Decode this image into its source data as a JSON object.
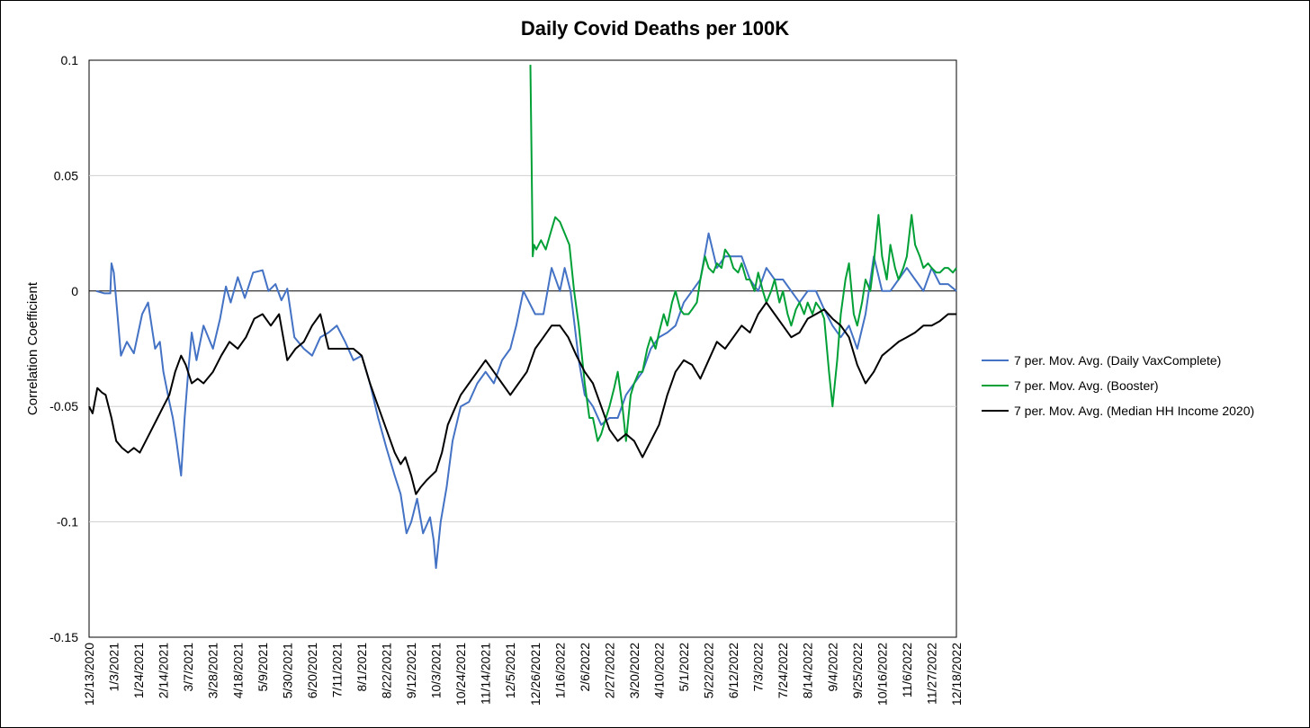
{
  "chart_data": {
    "type": "line",
    "title": "Daily Covid Deaths per 100K",
    "xlabel": "",
    "ylabel": "Correlation Coefficient",
    "ylim": [
      -0.15,
      0.1
    ],
    "yticks": [
      0.1,
      0.05,
      0,
      -0.05,
      -0.1,
      -0.15
    ],
    "ytick_labels": [
      "0.1",
      "0.05",
      "0",
      "-0.05",
      "-0.1",
      "-0.15"
    ],
    "xlim": [
      "2020-12-13",
      "2022-12-18"
    ],
    "xtick_labels": [
      "12/13/2020",
      "1/3/2021",
      "1/24/2021",
      "2/14/2021",
      "3/7/2021",
      "3/28/2021",
      "4/18/2021",
      "5/9/2021",
      "5/30/2021",
      "6/20/2021",
      "7/11/2021",
      "8/1/2021",
      "8/22/2021",
      "9/12/2021",
      "10/3/2021",
      "10/24/2021",
      "11/14/2021",
      "12/5/2021",
      "12/26/2021",
      "1/16/2022",
      "2/6/2022",
      "2/27/2022",
      "3/20/2022",
      "4/10/2022",
      "5/1/2022",
      "5/22/2022",
      "6/12/2022",
      "7/3/2022",
      "7/24/2022",
      "8/14/2022",
      "9/4/2022",
      "9/25/2022",
      "10/16/2022",
      "11/6/2022",
      "11/27/2022",
      "12/18/2022"
    ],
    "grid": true,
    "legend_position": "right",
    "series": [
      {
        "name": "7 per. Mov. Avg. (Daily VaxComplete)",
        "color": "#4472C4",
        "x": [
          "2020-12-19",
          "2020-12-26",
          "2020-12-31",
          "2021-01-01",
          "2021-01-03",
          "2021-01-06",
          "2021-01-09",
          "2021-01-14",
          "2021-01-20",
          "2021-01-27",
          "2021-02-01",
          "2021-02-07",
          "2021-02-11",
          "2021-02-14",
          "2021-02-19",
          "2021-02-22",
          "2021-02-25",
          "2021-03-01",
          "2021-03-04",
          "2021-03-07",
          "2021-03-10",
          "2021-03-14",
          "2021-03-20",
          "2021-03-28",
          "2021-04-03",
          "2021-04-08",
          "2021-04-12",
          "2021-04-18",
          "2021-04-24",
          "2021-05-01",
          "2021-05-09",
          "2021-05-14",
          "2021-05-20",
          "2021-05-25",
          "2021-05-30",
          "2021-06-05",
          "2021-06-13",
          "2021-06-20",
          "2021-06-27",
          "2021-07-04",
          "2021-07-11",
          "2021-07-18",
          "2021-07-25",
          "2021-08-01",
          "2021-08-08",
          "2021-08-15",
          "2021-08-22",
          "2021-08-29",
          "2021-09-03",
          "2021-09-08",
          "2021-09-12",
          "2021-09-17",
          "2021-09-22",
          "2021-09-28",
          "2021-10-01",
          "2021-10-03",
          "2021-10-07",
          "2021-10-12",
          "2021-10-17",
          "2021-10-24",
          "2021-10-31",
          "2021-11-07",
          "2021-11-14",
          "2021-11-21",
          "2021-11-28",
          "2021-12-05",
          "2021-12-10",
          "2021-12-16",
          "2021-12-21",
          "2021-12-26",
          "2022-01-02",
          "2022-01-09",
          "2022-01-16",
          "2022-01-20",
          "2022-01-25",
          "2022-02-01",
          "2022-02-06",
          "2022-02-13",
          "2022-02-20",
          "2022-02-27",
          "2022-03-06",
          "2022-03-13",
          "2022-03-20",
          "2022-03-27",
          "2022-04-03",
          "2022-04-10",
          "2022-04-17",
          "2022-04-24",
          "2022-05-01",
          "2022-05-08",
          "2022-05-15",
          "2022-05-22",
          "2022-05-29",
          "2022-06-05",
          "2022-06-12",
          "2022-06-19",
          "2022-06-26",
          "2022-07-03",
          "2022-07-10",
          "2022-07-17",
          "2022-07-24",
          "2022-07-31",
          "2022-08-07",
          "2022-08-14",
          "2022-08-21",
          "2022-08-28",
          "2022-09-04",
          "2022-09-11",
          "2022-09-18",
          "2022-09-25",
          "2022-10-02",
          "2022-10-09",
          "2022-10-16",
          "2022-10-23",
          "2022-10-30",
          "2022-11-06",
          "2022-11-13",
          "2022-11-20",
          "2022-11-27",
          "2022-12-04",
          "2022-12-11",
          "2022-12-18"
        ],
        "y": [
          0,
          -0.001,
          -0.001,
          0.012,
          0.008,
          -0.01,
          -0.028,
          -0.022,
          -0.027,
          -0.01,
          -0.005,
          -0.025,
          -0.022,
          -0.035,
          -0.048,
          -0.055,
          -0.065,
          -0.08,
          -0.055,
          -0.035,
          -0.018,
          -0.03,
          -0.015,
          -0.025,
          -0.012,
          0.002,
          -0.005,
          0.006,
          -0.003,
          0.008,
          0.009,
          0.0,
          0.003,
          -0.004,
          0.001,
          -0.02,
          -0.025,
          -0.028,
          -0.02,
          -0.018,
          -0.015,
          -0.022,
          -0.03,
          -0.028,
          -0.04,
          -0.055,
          -0.068,
          -0.08,
          -0.088,
          -0.105,
          -0.1,
          -0.09,
          -0.105,
          -0.098,
          -0.108,
          -0.12,
          -0.1,
          -0.085,
          -0.065,
          -0.05,
          -0.048,
          -0.04,
          -0.035,
          -0.04,
          -0.03,
          -0.025,
          -0.015,
          0.0,
          -0.005,
          -0.01,
          -0.01,
          0.01,
          0.0,
          0.01,
          0.0,
          -0.03,
          -0.045,
          -0.05,
          -0.058,
          -0.055,
          -0.055,
          -0.045,
          -0.04,
          -0.035,
          -0.025,
          -0.02,
          -0.018,
          -0.015,
          -0.005,
          0.0,
          0.005,
          0.025,
          0.01,
          0.015,
          0.015,
          0.015,
          0.005,
          0.0,
          0.01,
          0.005,
          0.005,
          0.0,
          -0.005,
          0.0,
          0.0,
          -0.008,
          -0.015,
          -0.02,
          -0.015,
          -0.025,
          -0.01,
          0.015,
          0.0,
          0.0,
          0.005,
          0.01,
          0.005,
          0.0,
          0.01,
          0.003,
          0.003,
          0.0
        ]
      },
      {
        "name": "7 per. Mov. Avg. (Booster)",
        "color": "#00A036",
        "x": [
          "2021-12-22",
          "2021-12-23",
          "2021-12-24",
          "2021-12-25",
          "2021-12-27",
          "2021-12-31",
          "2022-01-04",
          "2022-01-08",
          "2022-01-12",
          "2022-01-16",
          "2022-01-20",
          "2022-01-24",
          "2022-01-28",
          "2022-02-01",
          "2022-02-06",
          "2022-02-10",
          "2022-02-13",
          "2022-02-17",
          "2022-02-20",
          "2022-02-24",
          "2022-02-27",
          "2022-03-03",
          "2022-03-06",
          "2022-03-10",
          "2022-03-13",
          "2022-03-17",
          "2022-03-20",
          "2022-03-24",
          "2022-03-27",
          "2022-03-31",
          "2022-04-03",
          "2022-04-07",
          "2022-04-10",
          "2022-04-14",
          "2022-04-17",
          "2022-04-21",
          "2022-04-24",
          "2022-04-28",
          "2022-05-01",
          "2022-05-05",
          "2022-05-08",
          "2022-05-12",
          "2022-05-15",
          "2022-05-19",
          "2022-05-22",
          "2022-05-26",
          "2022-05-29",
          "2022-06-02",
          "2022-06-05",
          "2022-06-09",
          "2022-06-12",
          "2022-06-16",
          "2022-06-19",
          "2022-06-23",
          "2022-06-26",
          "2022-06-30",
          "2022-07-03",
          "2022-07-07",
          "2022-07-10",
          "2022-07-14",
          "2022-07-17",
          "2022-07-21",
          "2022-07-24",
          "2022-07-28",
          "2022-07-31",
          "2022-08-04",
          "2022-08-07",
          "2022-08-11",
          "2022-08-14",
          "2022-08-18",
          "2022-08-21",
          "2022-08-25",
          "2022-08-28",
          "2022-09-01",
          "2022-09-04",
          "2022-09-06",
          "2022-09-08",
          "2022-09-11",
          "2022-09-15",
          "2022-09-18",
          "2022-09-22",
          "2022-09-25",
          "2022-09-29",
          "2022-10-02",
          "2022-10-06",
          "2022-10-09",
          "2022-10-13",
          "2022-10-16",
          "2022-10-20",
          "2022-10-23",
          "2022-10-27",
          "2022-10-30",
          "2022-11-03",
          "2022-11-06",
          "2022-11-10",
          "2022-11-13",
          "2022-11-17",
          "2022-11-20",
          "2022-11-24",
          "2022-11-27",
          "2022-12-01",
          "2022-12-04",
          "2022-12-08",
          "2022-12-11",
          "2022-12-15",
          "2022-12-18"
        ],
        "y": [
          0.098,
          0.058,
          0.015,
          0.02,
          0.018,
          0.022,
          0.018,
          0.025,
          0.032,
          0.03,
          0.025,
          0.02,
          0.0,
          -0.015,
          -0.04,
          -0.055,
          -0.055,
          -0.065,
          -0.062,
          -0.055,
          -0.05,
          -0.042,
          -0.035,
          -0.05,
          -0.065,
          -0.045,
          -0.04,
          -0.035,
          -0.035,
          -0.025,
          -0.02,
          -0.025,
          -0.018,
          -0.01,
          -0.015,
          -0.005,
          0.0,
          -0.008,
          -0.01,
          -0.01,
          -0.008,
          -0.005,
          0.005,
          0.015,
          0.01,
          0.008,
          0.012,
          0.01,
          0.018,
          0.015,
          0.01,
          0.008,
          0.012,
          0.005,
          0.005,
          0.0,
          0.008,
          0.0,
          -0.005,
          0.0,
          0.005,
          -0.005,
          0.0,
          -0.01,
          -0.015,
          -0.008,
          -0.005,
          -0.01,
          -0.005,
          -0.01,
          -0.005,
          -0.008,
          -0.012,
          -0.035,
          -0.05,
          -0.04,
          -0.03,
          -0.01,
          0.005,
          0.012,
          -0.01,
          -0.015,
          -0.005,
          0.005,
          0.0,
          0.012,
          0.033,
          0.015,
          0.005,
          0.02,
          0.01,
          0.005,
          0.01,
          0.015,
          0.033,
          0.02,
          0.015,
          0.01,
          0.012,
          0.01,
          0.008,
          0.008,
          0.01,
          0.01,
          0.008,
          0.01
        ]
      },
      {
        "name": "7 per. Mov. Avg. (Median HH Income 2020)",
        "color": "#000000",
        "x": [
          "2020-12-13",
          "2020-12-16",
          "2020-12-20",
          "2020-12-24",
          "2020-12-27",
          "2021-01-01",
          "2021-01-05",
          "2021-01-10",
          "2021-01-15",
          "2021-01-20",
          "2021-01-25",
          "2021-01-30",
          "2021-02-04",
          "2021-02-09",
          "2021-02-14",
          "2021-02-19",
          "2021-02-24",
          "2021-03-01",
          "2021-03-05",
          "2021-03-10",
          "2021-03-15",
          "2021-03-20",
          "2021-03-28",
          "2021-04-04",
          "2021-04-11",
          "2021-04-18",
          "2021-04-25",
          "2021-05-02",
          "2021-05-09",
          "2021-05-16",
          "2021-05-23",
          "2021-05-30",
          "2021-06-06",
          "2021-06-13",
          "2021-06-20",
          "2021-06-27",
          "2021-07-04",
          "2021-07-11",
          "2021-07-18",
          "2021-07-25",
          "2021-08-01",
          "2021-08-08",
          "2021-08-15",
          "2021-08-22",
          "2021-08-29",
          "2021-09-03",
          "2021-09-07",
          "2021-09-12",
          "2021-09-16",
          "2021-09-20",
          "2021-09-25",
          "2021-09-29",
          "2021-10-03",
          "2021-10-08",
          "2021-10-13",
          "2021-10-18",
          "2021-10-24",
          "2021-10-31",
          "2021-11-07",
          "2021-11-14",
          "2021-11-21",
          "2021-11-28",
          "2021-12-05",
          "2021-12-12",
          "2021-12-19",
          "2021-12-26",
          "2022-01-02",
          "2022-01-09",
          "2022-01-16",
          "2022-01-23",
          "2022-01-30",
          "2022-02-06",
          "2022-02-13",
          "2022-02-20",
          "2022-02-27",
          "2022-03-06",
          "2022-03-13",
          "2022-03-20",
          "2022-03-27",
          "2022-04-03",
          "2022-04-10",
          "2022-04-17",
          "2022-04-24",
          "2022-05-01",
          "2022-05-08",
          "2022-05-15",
          "2022-05-22",
          "2022-05-29",
          "2022-06-05",
          "2022-06-12",
          "2022-06-19",
          "2022-06-26",
          "2022-07-03",
          "2022-07-10",
          "2022-07-17",
          "2022-07-24",
          "2022-07-31",
          "2022-08-07",
          "2022-08-14",
          "2022-08-21",
          "2022-08-28",
          "2022-09-04",
          "2022-09-11",
          "2022-09-18",
          "2022-09-25",
          "2022-10-02",
          "2022-10-09",
          "2022-10-16",
          "2022-10-23",
          "2022-10-30",
          "2022-11-06",
          "2022-11-13",
          "2022-11-20",
          "2022-11-27",
          "2022-12-04",
          "2022-12-11",
          "2022-12-18"
        ],
        "y": [
          -0.05,
          -0.053,
          -0.042,
          -0.044,
          -0.045,
          -0.055,
          -0.065,
          -0.068,
          -0.07,
          -0.068,
          -0.07,
          -0.065,
          -0.06,
          -0.055,
          -0.05,
          -0.045,
          -0.035,
          -0.028,
          -0.032,
          -0.04,
          -0.038,
          -0.04,
          -0.035,
          -0.028,
          -0.022,
          -0.025,
          -0.02,
          -0.012,
          -0.01,
          -0.015,
          -0.01,
          -0.03,
          -0.025,
          -0.022,
          -0.015,
          -0.01,
          -0.025,
          -0.025,
          -0.025,
          -0.025,
          -0.028,
          -0.04,
          -0.05,
          -0.06,
          -0.07,
          -0.075,
          -0.072,
          -0.08,
          -0.088,
          -0.085,
          -0.082,
          -0.08,
          -0.078,
          -0.07,
          -0.058,
          -0.052,
          -0.045,
          -0.04,
          -0.035,
          -0.03,
          -0.035,
          -0.04,
          -0.045,
          -0.04,
          -0.035,
          -0.025,
          -0.02,
          -0.015,
          -0.015,
          -0.02,
          -0.028,
          -0.035,
          -0.04,
          -0.05,
          -0.06,
          -0.065,
          -0.062,
          -0.065,
          -0.072,
          -0.065,
          -0.058,
          -0.045,
          -0.035,
          -0.03,
          -0.032,
          -0.038,
          -0.03,
          -0.022,
          -0.025,
          -0.02,
          -0.015,
          -0.018,
          -0.01,
          -0.005,
          -0.01,
          -0.015,
          -0.02,
          -0.018,
          -0.012,
          -0.01,
          -0.008,
          -0.012,
          -0.015,
          -0.02,
          -0.032,
          -0.04,
          -0.035,
          -0.028,
          -0.025,
          -0.022,
          -0.02,
          -0.018,
          -0.015,
          -0.015,
          -0.013,
          -0.01,
          -0.01
        ]
      }
    ]
  }
}
